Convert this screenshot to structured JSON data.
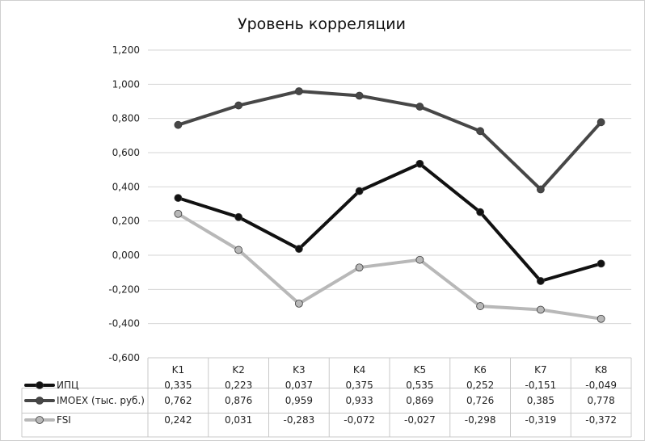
{
  "chart_data": {
    "type": "line",
    "title": "Уровень корреляции",
    "categories": [
      "K1",
      "K2",
      "K3",
      "K4",
      "K5",
      "K6",
      "K7",
      "K8"
    ],
    "ylim": [
      -0.6,
      1.2
    ],
    "ytick_values": [
      1.2,
      1.0,
      0.8,
      0.6,
      0.4,
      0.2,
      0.0,
      -0.2,
      -0.4,
      -0.6
    ],
    "ytick_labels": [
      "1,200",
      "1,000",
      "0,800",
      "0,600",
      "0,400",
      "0,200",
      "0,000",
      "-0,200",
      "-0,400",
      "-0,600"
    ],
    "grid": true,
    "legend": "data-table",
    "series": [
      {
        "name": "ИПЦ",
        "color": "#111111",
        "values": [
          0.335,
          0.223,
          0.037,
          0.375,
          0.535,
          0.252,
          -0.151,
          -0.049
        ],
        "labels": [
          "0,335",
          "0,223",
          "0,037",
          "0,375",
          "0,535",
          "0,252",
          "-0,151",
          "-0,049"
        ]
      },
      {
        "name": "IMOEX (тыс. руб.)",
        "color": "#474747",
        "values": [
          0.762,
          0.876,
          0.959,
          0.933,
          0.869,
          0.726,
          0.385,
          0.778
        ],
        "labels": [
          "0,762",
          "0,876",
          "0,959",
          "0,933",
          "0,869",
          "0,726",
          "0,385",
          "0,778"
        ]
      },
      {
        "name": "FSI",
        "color": "#b8b8b8",
        "values": [
          0.242,
          0.031,
          -0.283,
          -0.072,
          -0.027,
          -0.298,
          -0.319,
          -0.372
        ],
        "labels": [
          "0,242",
          "0,031",
          "-0,283",
          "-0,072",
          "-0,027",
          "-0,298",
          "-0,319",
          "-0,372"
        ]
      }
    ]
  }
}
